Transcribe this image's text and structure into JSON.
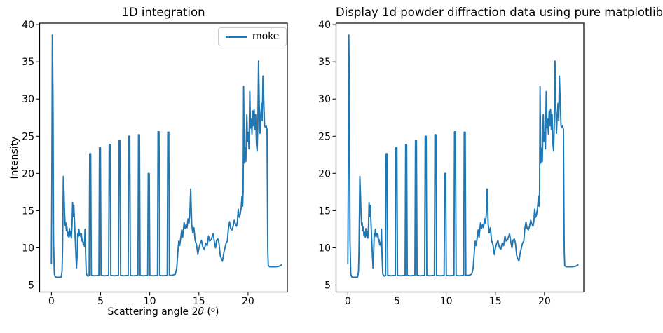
{
  "chart_data": [
    {
      "type": "line",
      "title": "1D integration",
      "xlabel": "Scattering angle 2θ (°)",
      "xlabel_parts": {
        "pre": "Scattering angle 2",
        "theta": "θ",
        "open": " (",
        "sup": "o",
        "close": ")"
      },
      "ylabel": "Intensity",
      "xlim": [
        -1.2,
        24.0
      ],
      "ylim": [
        4.06,
        40.2
      ],
      "xticks": [
        0,
        5,
        10,
        15,
        20
      ],
      "yticks": [
        5,
        10,
        15,
        20,
        25,
        30,
        35,
        40
      ],
      "grid": false,
      "legend": {
        "position": "upper right",
        "entries": [
          "moke"
        ]
      },
      "series": [
        {
          "name": "moke",
          "color": "#1f77b4",
          "data_ref": "moke"
        }
      ]
    },
    {
      "type": "line",
      "title": "Display 1d powder diffraction data using pure matplotlib",
      "xlabel": "",
      "ylabel": "",
      "xlim": [
        -1.2,
        24.0
      ],
      "ylim": [
        4.06,
        40.2
      ],
      "xticks": [
        0,
        5,
        10,
        15,
        20
      ],
      "yticks": [
        5,
        10,
        15,
        20,
        25,
        30,
        35,
        40
      ],
      "grid": false,
      "legend": null,
      "series": [
        {
          "name": "moke",
          "color": "#1f77b4",
          "data_ref": "moke"
        }
      ]
    }
  ],
  "series_data": {
    "moke": {
      "x": [
        0.0,
        0.05,
        0.1,
        0.16,
        0.22,
        0.3,
        0.4,
        0.6,
        0.8,
        1.0,
        1.08,
        1.13,
        1.18,
        1.22,
        1.28,
        1.34,
        1.4,
        1.46,
        1.52,
        1.58,
        1.64,
        1.71,
        1.78,
        1.84,
        1.9,
        1.96,
        2.03,
        2.1,
        2.16,
        2.22,
        2.28,
        2.35,
        2.42,
        2.5,
        2.56,
        2.62,
        2.68,
        2.74,
        2.8,
        2.86,
        2.92,
        2.98,
        3.05,
        3.12,
        3.18,
        3.24,
        3.3,
        3.36,
        3.42,
        3.48,
        3.55,
        3.7,
        3.84,
        3.9,
        4.0,
        4.06,
        4.39,
        4.83,
        4.89,
        4.99,
        5.05,
        5.38,
        5.82,
        5.88,
        5.98,
        6.04,
        6.37,
        6.82,
        6.88,
        6.98,
        7.04,
        7.37,
        7.81,
        7.87,
        7.97,
        8.03,
        8.36,
        8.8,
        8.86,
        8.96,
        9.02,
        9.35,
        9.79,
        9.85,
        9.95,
        10.01,
        10.34,
        10.79,
        10.85,
        10.95,
        11.01,
        11.34,
        11.78,
        11.84,
        11.94,
        12.0,
        12.3,
        12.6,
        12.75,
        12.85,
        12.95,
        13.05,
        13.15,
        13.26,
        13.35,
        13.5,
        13.6,
        13.7,
        13.8,
        13.9,
        14.0,
        14.08,
        14.17,
        14.28,
        14.38,
        14.5,
        14.62,
        14.76,
        14.9,
        15.0,
        15.12,
        15.26,
        15.4,
        15.55,
        15.7,
        15.85,
        15.98,
        16.1,
        16.25,
        16.45,
        16.6,
        16.7,
        16.8,
        16.93,
        17.05,
        17.17,
        17.3,
        17.4,
        17.55,
        17.76,
        17.9,
        18.0,
        18.12,
        18.24,
        18.36,
        18.48,
        18.6,
        18.72,
        18.83,
        18.92,
        19.0,
        19.1,
        19.2,
        19.3,
        19.38,
        19.45,
        19.5,
        19.55,
        19.63,
        19.7,
        19.78,
        19.88,
        19.95,
        20.02,
        20.1,
        20.18,
        20.26,
        20.33,
        20.4,
        20.48,
        20.55,
        20.62,
        20.7,
        20.78,
        20.85,
        20.93,
        21.0,
        21.07,
        21.15,
        21.22,
        21.3,
        21.38,
        21.45,
        21.52,
        21.6,
        21.68,
        21.76,
        21.85,
        21.93,
        21.97,
        22.01,
        22.06,
        22.2,
        22.5,
        22.8,
        23.1,
        23.3,
        23.4
      ],
      "y": [
        7.9,
        20.0,
        38.6,
        30.0,
        11.0,
        6.5,
        6.1,
        6.05,
        6.05,
        6.1,
        6.8,
        9.5,
        15.0,
        19.6,
        17.5,
        14.8,
        13.0,
        13.4,
        12.3,
        12.8,
        11.6,
        12.1,
        11.4,
        12.6,
        11.6,
        12.2,
        11.3,
        13.0,
        16.1,
        14.2,
        15.7,
        13.6,
        11.2,
        8.9,
        7.3,
        9.0,
        11.9,
        11.5,
        12.5,
        11.7,
        11.9,
        11.5,
        11.9,
        10.9,
        11.1,
        10.4,
        10.7,
        10.2,
        12.5,
        9.0,
        6.5,
        6.2,
        6.3,
        22.65,
        22.65,
        6.3,
        6.25,
        6.3,
        23.45,
        23.45,
        6.3,
        6.25,
        6.3,
        23.9,
        23.9,
        6.3,
        6.25,
        6.3,
        24.4,
        24.4,
        6.3,
        6.25,
        6.3,
        25.0,
        25.0,
        6.3,
        6.25,
        6.3,
        25.2,
        25.2,
        6.3,
        6.25,
        6.3,
        20.0,
        20.0,
        6.3,
        6.25,
        6.3,
        25.6,
        25.6,
        6.3,
        6.25,
        6.3,
        25.55,
        25.55,
        6.3,
        6.3,
        6.45,
        7.3,
        9.2,
        10.9,
        10.3,
        11.3,
        12.4,
        11.4,
        13.4,
        12.6,
        13.1,
        12.7,
        13.9,
        13.3,
        14.4,
        17.9,
        13.1,
        12.0,
        12.7,
        11.0,
        10.4,
        9.1,
        9.9,
        10.5,
        11.0,
        10.1,
        9.8,
        10.6,
        10.3,
        11.6,
        10.9,
        11.1,
        11.9,
        10.6,
        10.0,
        11.0,
        11.2,
        10.6,
        9.0,
        8.5,
        8.2,
        9.4,
        10.6,
        10.9,
        12.5,
        13.5,
        12.6,
        12.4,
        12.9,
        13.7,
        13.2,
        12.9,
        13.5,
        15.2,
        14.1,
        14.5,
        15.4,
        16.9,
        15.6,
        17.5,
        31.7,
        21.4,
        23.4,
        21.6,
        27.9,
        24.3,
        25.5,
        23.3,
        31.0,
        26.1,
        27.3,
        25.3,
        28.4,
        26.4,
        28.6,
        25.9,
        27.9,
        24.1,
        23.0,
        26.6,
        35.1,
        28.9,
        25.4,
        27.7,
        29.4,
        27.1,
        33.1,
        29.9,
        26.4,
        26.2,
        26.4,
        25.9,
        18.0,
        9.5,
        7.6,
        7.45,
        7.45,
        7.45,
        7.5,
        7.6,
        7.7
      ]
    }
  }
}
